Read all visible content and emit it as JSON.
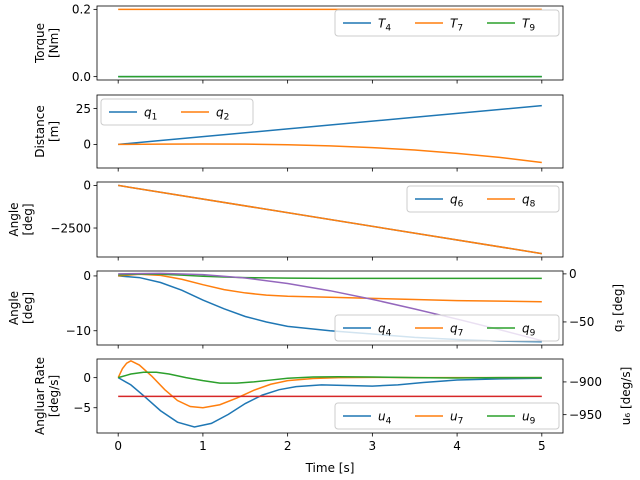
{
  "chart_data": [
    {
      "type": "line",
      "panel": 1,
      "ylabel": [
        "Torque",
        "[Nm]"
      ],
      "xlim": [
        0,
        5
      ],
      "ylim": [
        -0.01,
        0.21
      ],
      "yticks": [
        0.0,
        0.2
      ],
      "ytick_labels": [
        "0.0",
        "0.2"
      ],
      "legend_loc": "upper right",
      "legend_ncol": 3,
      "series": [
        {
          "name": "T",
          "sub": "4",
          "color": "#1f77b4",
          "x": [
            0,
            5
          ],
          "y": [
            0.0,
            0.0
          ]
        },
        {
          "name": "T",
          "sub": "7",
          "color": "#ff7f0e",
          "x": [
            0,
            5
          ],
          "y": [
            0.2,
            0.2
          ]
        },
        {
          "name": "T",
          "sub": "9",
          "color": "#2ca02c",
          "x": [
            0,
            5
          ],
          "y": [
            0.0,
            0.0
          ]
        }
      ]
    },
    {
      "type": "line",
      "panel": 2,
      "ylabel": [
        "Distance",
        "[m]"
      ],
      "xlim": [
        0,
        5
      ],
      "ylim": [
        -16.4,
        34.4
      ],
      "yticks": [
        0,
        25
      ],
      "ytick_labels": [
        "0",
        "25"
      ],
      "legend_loc": "upper left",
      "legend_ncol": 2,
      "series": [
        {
          "name": "q",
          "sub": "1",
          "color": "#1f77b4",
          "x": [
            0,
            0.5,
            1,
            1.5,
            2,
            2.5,
            3,
            3.5,
            4,
            4.5,
            5
          ],
          "y": [
            0,
            2.7,
            5.4,
            8.1,
            10.8,
            13.5,
            16.2,
            18.9,
            21.6,
            24.3,
            27.0
          ]
        },
        {
          "name": "q",
          "sub": "2",
          "color": "#ff7f0e",
          "x": [
            0,
            0.5,
            1,
            1.5,
            2,
            2.5,
            3,
            3.5,
            4,
            4.5,
            5
          ],
          "y": [
            0,
            0.2,
            0.3,
            0.2,
            -0.2,
            -1.0,
            -2.2,
            -3.9,
            -6.2,
            -9.0,
            -12.6
          ]
        }
      ]
    },
    {
      "type": "line",
      "panel": 3,
      "ylabel": [
        "Angle",
        "[deg]"
      ],
      "xlim": [
        0,
        5
      ],
      "ylim": [
        -4200,
        200
      ],
      "yticks": [
        0,
        -2500
      ],
      "ytick_labels": [
        "0",
        "−2500"
      ],
      "legend_loc": "upper right",
      "legend_ncol": 2,
      "series": [
        {
          "name": "q",
          "sub": "6",
          "color": "#1f77b4",
          "x": [
            0,
            5
          ],
          "y": [
            0,
            -4000
          ]
        },
        {
          "name": "q",
          "sub": "8",
          "color": "#ff7f0e",
          "x": [
            0,
            5
          ],
          "y": [
            0,
            -4000
          ]
        }
      ]
    },
    {
      "type": "line",
      "panel": 4,
      "ylabel": [
        "Angle",
        "[deg]"
      ],
      "ylabel_right": "q₃ [deg]",
      "xlim": [
        0,
        5
      ],
      "ylim": [
        -12.6,
        0.9
      ],
      "yticks": [
        0,
        -10
      ],
      "ytick_labels": [
        "0",
        "−10"
      ],
      "ylim_right": [
        -74,
        3
      ],
      "yticks_right": [
        0,
        -50
      ],
      "ytick_labels_right": [
        "0",
        "−50"
      ],
      "legend_loc": "lower right",
      "legend_ncol": 3,
      "series": [
        {
          "name": "q",
          "sub": "4",
          "color": "#1f77b4",
          "x": [
            0,
            0.25,
            0.5,
            0.75,
            1,
            1.25,
            1.5,
            1.75,
            2,
            2.5,
            3,
            3.5,
            4,
            4.5,
            5
          ],
          "y": [
            0,
            -0.3,
            -1.2,
            -2.6,
            -4.4,
            -6.0,
            -7.4,
            -8.4,
            -9.2,
            -10.0,
            -10.6,
            -11.2,
            -11.6,
            -11.9,
            -12.0
          ]
        },
        {
          "name": "q",
          "sub": "7",
          "color": "#ff7f0e",
          "x": [
            0,
            0.25,
            0.5,
            0.75,
            1,
            1.25,
            1.5,
            1.75,
            2,
            2.5,
            3,
            3.5,
            4,
            4.5,
            5
          ],
          "y": [
            0,
            0.3,
            0.1,
            -0.6,
            -1.6,
            -2.5,
            -3.1,
            -3.5,
            -3.7,
            -3.9,
            -4.1,
            -4.3,
            -4.5,
            -4.6,
            -4.7
          ]
        },
        {
          "name": "q",
          "sub": "9",
          "color": "#2ca02c",
          "x": [
            0,
            0.25,
            0.5,
            0.75,
            1,
            1.25,
            1.5,
            1.75,
            2,
            2.5,
            3,
            3.5,
            4,
            4.5,
            5
          ],
          "y": [
            0.2,
            0.35,
            0.3,
            0.15,
            -0.05,
            -0.2,
            -0.3,
            -0.35,
            -0.4,
            -0.45,
            -0.45,
            -0.45,
            -0.45,
            -0.45,
            -0.45
          ]
        },
        {
          "name": "q",
          "sub": "3",
          "color": "#9467bd",
          "axis": "right",
          "legend": false,
          "x": [
            0,
            0.5,
            1,
            1.5,
            2,
            2.5,
            3,
            3.5,
            4,
            4.5,
            5
          ],
          "y": [
            0,
            0.5,
            -0.8,
            -4.3,
            -10,
            -17.5,
            -26.5,
            -36.5,
            -47,
            -58,
            -69.5
          ]
        }
      ]
    },
    {
      "type": "line",
      "panel": 5,
      "ylabel": [
        "Angluar Rate",
        "[deg/s]"
      ],
      "ylabel_right": "u₆ [deg/s]",
      "xlabel": "Time [s]",
      "xlim": [
        0,
        5
      ],
      "xticks": [
        0,
        1,
        2,
        3,
        4,
        5
      ],
      "xtick_labels": [
        "0",
        "1",
        "2",
        "3",
        "4",
        "5"
      ],
      "ylim": [
        -9.2,
        3.1
      ],
      "yticks": [
        0,
        -5
      ],
      "ytick_labels": [
        "0",
        "−5"
      ],
      "ylim_right": [
        -978,
        -865
      ],
      "yticks_right": [
        -900,
        -950
      ],
      "ytick_labels_right": [
        "−900",
        "−950"
      ],
      "legend_loc": "lower right",
      "legend_ncol": 3,
      "series": [
        {
          "name": "u",
          "sub": "4",
          "color": "#1f77b4",
          "x": [
            0,
            0.15,
            0.3,
            0.5,
            0.7,
            0.9,
            1.1,
            1.3,
            1.5,
            1.7,
            1.9,
            2.1,
            2.4,
            2.7,
            3.0,
            3.3,
            3.6,
            4.0,
            4.5,
            5.0
          ],
          "y": [
            0,
            -1.2,
            -3.0,
            -5.5,
            -7.4,
            -8.2,
            -7.6,
            -6.1,
            -4.3,
            -2.9,
            -2.0,
            -1.5,
            -1.2,
            -1.3,
            -1.4,
            -1.2,
            -0.8,
            -0.4,
            -0.2,
            -0.1
          ]
        },
        {
          "name": "u",
          "sub": "7",
          "color": "#ff7f0e",
          "x": [
            0,
            0.05,
            0.1,
            0.15,
            0.25,
            0.4,
            0.55,
            0.7,
            0.85,
            1.0,
            1.2,
            1.4,
            1.6,
            1.8,
            2.0,
            2.3,
            2.6,
            3.0,
            3.5,
            4.0,
            4.5,
            5.0
          ],
          "y": [
            0,
            1.5,
            2.4,
            2.8,
            2.1,
            0.2,
            -2.0,
            -3.8,
            -4.8,
            -5.0,
            -4.5,
            -3.4,
            -2.1,
            -1.1,
            -0.5,
            -0.15,
            0.0,
            0.05,
            0.0,
            0.0,
            0.0,
            0.0
          ]
        },
        {
          "name": "u",
          "sub": "9",
          "color": "#2ca02c",
          "x": [
            0,
            0.15,
            0.3,
            0.45,
            0.6,
            0.8,
            1.0,
            1.2,
            1.4,
            1.6,
            1.8,
            2.0,
            2.3,
            2.6,
            3.0,
            3.5,
            4.0,
            4.5,
            5.0
          ],
          "y": [
            0,
            0.6,
            0.9,
            0.9,
            0.6,
            0.0,
            -0.5,
            -0.9,
            -0.9,
            -0.7,
            -0.4,
            -0.1,
            0.1,
            0.15,
            0.1,
            0.0,
            -0.05,
            0.0,
            0.0
          ]
        },
        {
          "name": "u",
          "sub": "6",
          "color": "#d62728",
          "axis": "right",
          "legend": false,
          "x": [
            0,
            5
          ],
          "y": [
            -922,
            -922
          ]
        }
      ]
    }
  ]
}
